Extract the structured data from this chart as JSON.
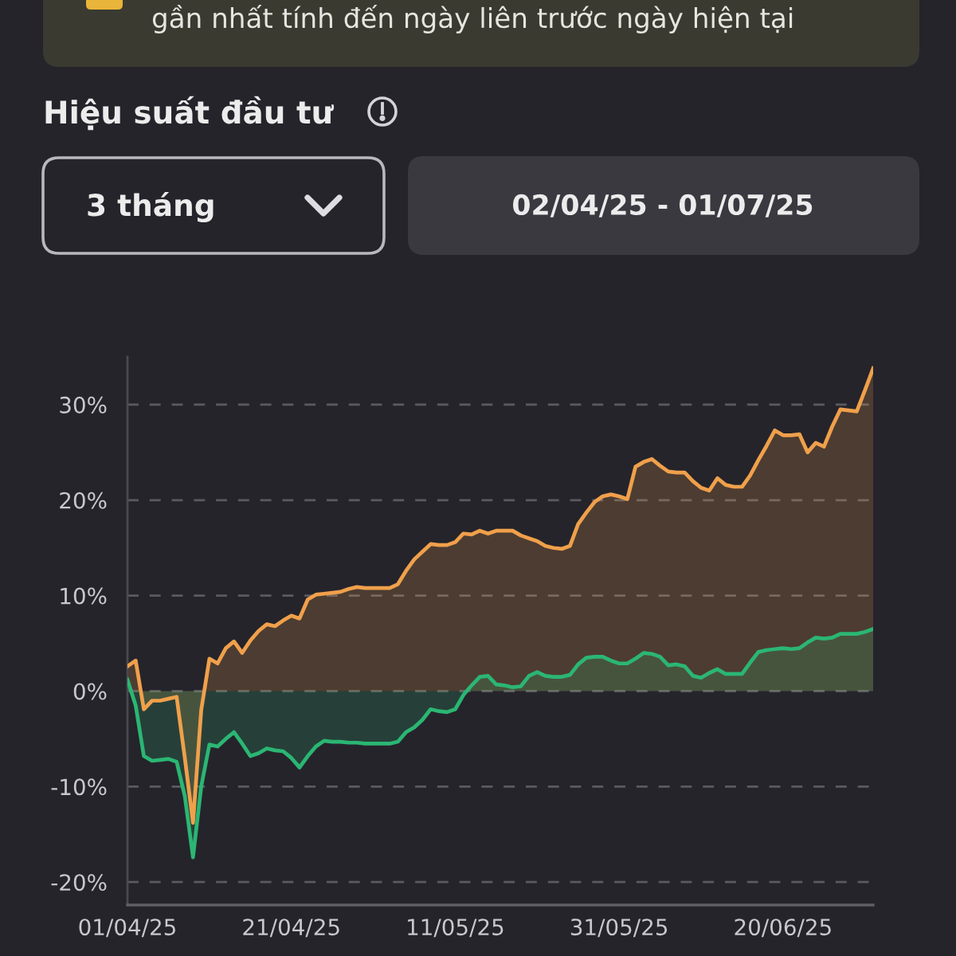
{
  "chart_data": {
    "type": "area",
    "title": "Hiệu suất đầu tư",
    "annotations": [
      "gần nhất tính đến ngày liên trước ngày hiện tại",
      "3 tháng",
      "02/04/25 - 01/07/25"
    ],
    "x": [
      "2025-04-01",
      "2025-04-02",
      "2025-04-03",
      "2025-04-04",
      "2025-04-05",
      "2025-04-06",
      "2025-04-07",
      "2025-04-08",
      "2025-04-09",
      "2025-04-10",
      "2025-04-11",
      "2025-04-12",
      "2025-04-13",
      "2025-04-14",
      "2025-04-15",
      "2025-04-16",
      "2025-04-17",
      "2025-04-18",
      "2025-04-19",
      "2025-04-20",
      "2025-04-21",
      "2025-04-22",
      "2025-04-23",
      "2025-04-24",
      "2025-04-25",
      "2025-04-26",
      "2025-04-27",
      "2025-04-28",
      "2025-04-29",
      "2025-04-30",
      "2025-05-01",
      "2025-05-02",
      "2025-05-03",
      "2025-05-04",
      "2025-05-05",
      "2025-05-06",
      "2025-05-07",
      "2025-05-08",
      "2025-05-09",
      "2025-05-10",
      "2025-05-11",
      "2025-05-12",
      "2025-05-13",
      "2025-05-14",
      "2025-05-15",
      "2025-05-16",
      "2025-05-17",
      "2025-05-18",
      "2025-05-19",
      "2025-05-20",
      "2025-05-21",
      "2025-05-22",
      "2025-05-23",
      "2025-05-24",
      "2025-05-25",
      "2025-05-26",
      "2025-05-27",
      "2025-05-28",
      "2025-05-29",
      "2025-05-30",
      "2025-05-31",
      "2025-06-01",
      "2025-06-02",
      "2025-06-03",
      "2025-06-04",
      "2025-06-05",
      "2025-06-06",
      "2025-06-07",
      "2025-06-08",
      "2025-06-09",
      "2025-06-10",
      "2025-06-11",
      "2025-06-12",
      "2025-06-13",
      "2025-06-14",
      "2025-06-15",
      "2025-06-16",
      "2025-06-17",
      "2025-06-18",
      "2025-06-19",
      "2025-06-20",
      "2025-06-21",
      "2025-06-22",
      "2025-06-23",
      "2025-06-24",
      "2025-06-25",
      "2025-06-26",
      "2025-06-27",
      "2025-06-28",
      "2025-06-29",
      "2025-06-30",
      "2025-07-01"
    ],
    "series": [
      {
        "color": "#f0a04b",
        "values": [
          2.6,
          3.2,
          -1.9,
          -1.0,
          -1.0,
          -0.8,
          -0.6,
          -7,
          -13.8,
          -2,
          3.4,
          2.9,
          4.5,
          5.2,
          4.0,
          5.3,
          6.3,
          7.0,
          6.8,
          7.4,
          7.9,
          7.6,
          9.6,
          10.1,
          10.2,
          10.3,
          10.4,
          10.7,
          10.9,
          10.8,
          10.8,
          10.8,
          10.8,
          11.2,
          12.6,
          13.8,
          14.6,
          15.4,
          15.3,
          15.3,
          15.6,
          16.5,
          16.4,
          16.8,
          16.5,
          16.8,
          16.8,
          16.8,
          16.3,
          16.0,
          15.7,
          15.2,
          15.0,
          14.9,
          15.2,
          17.5,
          18.7,
          19.8,
          20.4,
          20.6,
          20.4,
          20.1,
          23.5,
          24.0,
          24.3,
          23.6,
          23.0,
          22.9,
          22.9,
          22.0,
          21.3,
          21.0,
          22.3,
          21.6,
          21.4,
          21.4,
          22.6,
          24.2,
          25.7,
          27.3,
          26.8,
          26.8,
          26.9,
          25.0,
          26.0,
          25.6,
          27.7,
          29.5,
          29.4,
          29.3,
          31.5,
          33.8
        ]
      },
      {
        "color": "#2bb673",
        "values": [
          1.2,
          -1.5,
          -6.8,
          -7.3,
          -7.2,
          -7.1,
          -7.4,
          -11,
          -17.4,
          -10,
          -5.6,
          -5.8,
          -5.0,
          -4.3,
          -5.5,
          -6.8,
          -6.5,
          -6.0,
          -6.2,
          -6.3,
          -7.0,
          -8.0,
          -6.8,
          -5.8,
          -5.2,
          -5.3,
          -5.3,
          -5.4,
          -5.4,
          -5.5,
          -5.5,
          -5.5,
          -5.5,
          -5.3,
          -4.3,
          -3.8,
          -3.0,
          -1.9,
          -2.1,
          -2.2,
          -1.9,
          -0.4,
          0.6,
          1.5,
          1.6,
          0.7,
          0.6,
          0.4,
          0.5,
          1.6,
          2.0,
          1.6,
          1.5,
          1.5,
          1.7,
          2.8,
          3.5,
          3.6,
          3.6,
          3.2,
          2.9,
          2.9,
          3.4,
          4.0,
          3.9,
          3.6,
          2.7,
          2.8,
          2.6,
          1.6,
          1.4,
          1.9,
          2.3,
          1.8,
          1.8,
          1.8,
          3.0,
          4.1,
          4.3,
          4.4,
          4.5,
          4.4,
          4.5,
          5.1,
          5.6,
          5.5,
          5.6,
          6.0,
          6.0,
          6.0,
          6.2,
          6.5
        ]
      }
    ],
    "xlim": [
      "2025-04-01",
      "2025-07-01"
    ],
    "xticks": [
      {
        "value": "2025-04-01",
        "label": "01/04/25"
      },
      {
        "value": "2025-04-21",
        "label": "21/04/25"
      },
      {
        "value": "2025-05-11",
        "label": "11/05/25"
      },
      {
        "value": "2025-05-31",
        "label": "31/05/25"
      },
      {
        "value": "2025-06-20",
        "label": "20/06/25"
      }
    ],
    "ylim": [
      -22.4,
      35
    ],
    "yticks": [
      {
        "value": -20,
        "label": "-20%"
      },
      {
        "value": -10,
        "label": "-10%"
      },
      {
        "value": 0,
        "label": "0%"
      },
      {
        "value": 10,
        "label": "10%"
      },
      {
        "value": 20,
        "label": "20%"
      },
      {
        "value": 30,
        "label": "30%"
      }
    ],
    "grid": "y"
  }
}
